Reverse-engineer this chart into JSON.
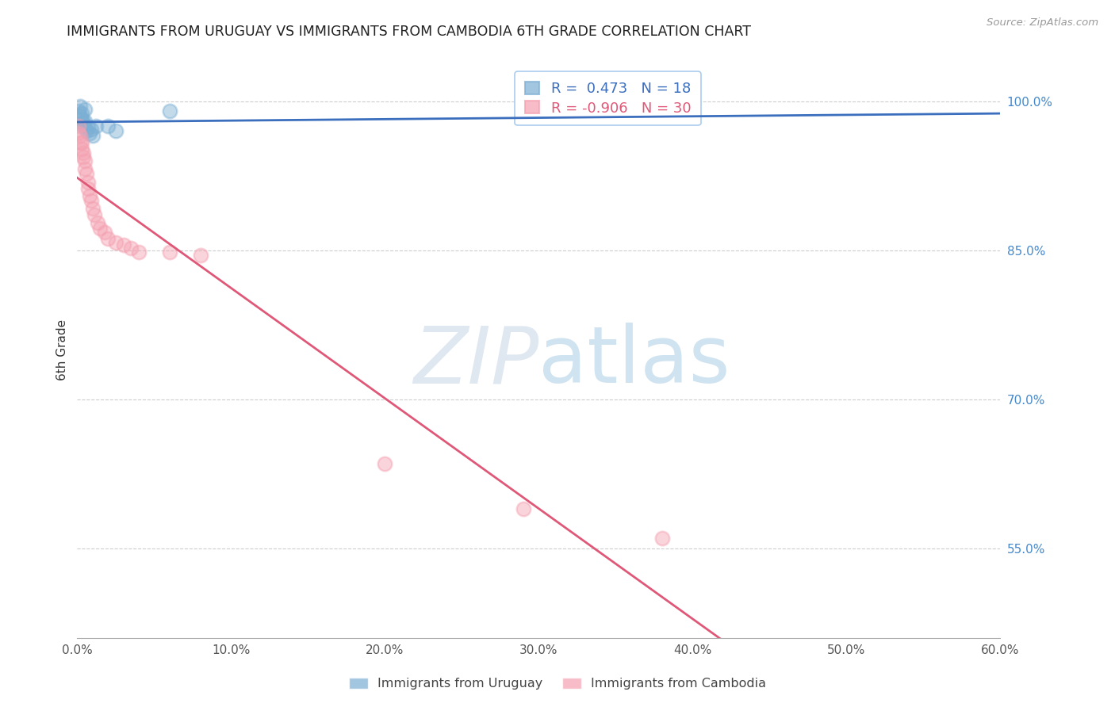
{
  "title": "IMMIGRANTS FROM URUGUAY VS IMMIGRANTS FROM CAMBODIA 6TH GRADE CORRELATION CHART",
  "source": "Source: ZipAtlas.com",
  "ylabel": "6th Grade",
  "ylabel_right_ticks": [
    "100.0%",
    "85.0%",
    "70.0%",
    "55.0%"
  ],
  "ylabel_right_positions": [
    1.0,
    0.85,
    0.7,
    0.55
  ],
  "xlim": [
    0.0,
    0.6
  ],
  "ylim": [
    0.46,
    1.04
  ],
  "uruguay_color": "#7BAFD4",
  "cambodia_color": "#F4A0B0",
  "uruguay_line_color": "#3B6FBE",
  "cambodia_line_color": "#E05878",
  "uruguay_R": 0.473,
  "uruguay_N": 18,
  "cambodia_R": -0.906,
  "cambodia_N": 30,
  "uruguay_scatter_x": [
    0.001,
    0.002,
    0.002,
    0.003,
    0.003,
    0.004,
    0.004,
    0.005,
    0.005,
    0.006,
    0.007,
    0.008,
    0.009,
    0.01,
    0.012,
    0.02,
    0.025,
    0.06
  ],
  "uruguay_scatter_y": [
    0.99,
    0.985,
    0.995,
    0.982,
    0.988,
    0.978,
    0.975,
    0.98,
    0.992,
    0.97,
    0.974,
    0.968,
    0.972,
    0.965,
    0.975,
    0.975,
    0.97,
    0.99
  ],
  "cambodia_scatter_x": [
    0.001,
    0.001,
    0.002,
    0.002,
    0.003,
    0.003,
    0.004,
    0.004,
    0.005,
    0.005,
    0.006,
    0.007,
    0.007,
    0.008,
    0.009,
    0.01,
    0.011,
    0.013,
    0.015,
    0.018,
    0.02,
    0.025,
    0.03,
    0.035,
    0.04,
    0.06,
    0.08,
    0.2,
    0.29,
    0.38
  ],
  "cambodia_scatter_y": [
    0.975,
    0.968,
    0.965,
    0.958,
    0.958,
    0.952,
    0.948,
    0.944,
    0.94,
    0.932,
    0.927,
    0.918,
    0.912,
    0.905,
    0.9,
    0.892,
    0.886,
    0.878,
    0.872,
    0.868,
    0.862,
    0.858,
    0.855,
    0.852,
    0.848,
    0.848,
    0.845,
    0.635,
    0.59,
    0.56
  ],
  "watermark_zip": "ZIP",
  "watermark_atlas": "atlas",
  "background_color": "#FFFFFF",
  "grid_color": "#CCCCCC",
  "right_axis_color": "#4488CC"
}
